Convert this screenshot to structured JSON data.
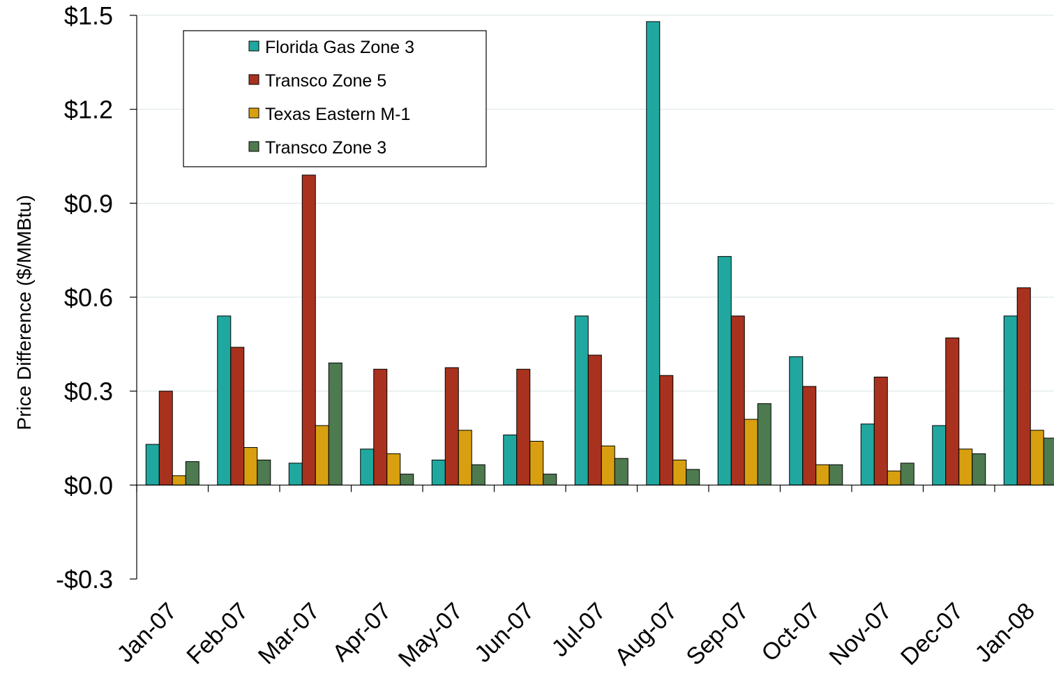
{
  "chart_data": {
    "type": "bar",
    "title": "",
    "xlabel": "",
    "ylabel": "Price Difference  ($/MMBtu)",
    "ylim": [
      -0.3,
      1.5
    ],
    "yticks": [
      -0.3,
      0.0,
      0.3,
      0.6,
      0.9,
      1.2,
      1.5
    ],
    "ytick_labels": [
      "-$0.3",
      "$0.0",
      "$0.3",
      "$0.6",
      "$0.9",
      "$1.2",
      "$1.5"
    ],
    "grid": true,
    "legend_position": "top-left",
    "categories": [
      "Jan-07",
      "Feb-07",
      "Mar-07",
      "Apr-07",
      "May-07",
      "Jun-07",
      "Jul-07",
      "Aug-07",
      "Sep-07",
      "Oct-07",
      "Nov-07",
      "Dec-07",
      "Jan-08"
    ],
    "series": [
      {
        "name": "Florida Gas Zone 3",
        "color": "#20A8A0",
        "values": [
          0.13,
          0.54,
          0.07,
          0.115,
          0.08,
          0.16,
          0.54,
          1.48,
          0.73,
          0.41,
          0.195,
          0.19,
          0.54
        ]
      },
      {
        "name": "Transco Zone 5",
        "color": "#A8321E",
        "values": [
          0.3,
          0.44,
          0.99,
          0.37,
          0.375,
          0.37,
          0.415,
          0.35,
          0.54,
          0.315,
          0.345,
          0.47,
          0.63
        ]
      },
      {
        "name": "Texas Eastern M-1",
        "color": "#D8A010",
        "values": [
          0.03,
          0.12,
          0.19,
          0.1,
          0.175,
          0.14,
          0.125,
          0.08,
          0.21,
          0.065,
          0.045,
          0.115,
          0.175
        ]
      },
      {
        "name": "Transco Zone 3",
        "color": "#4E7A50",
        "values": [
          0.075,
          0.08,
          0.39,
          0.035,
          0.065,
          0.035,
          0.085,
          0.05,
          0.26,
          0.065,
          0.07,
          0.1,
          0.15
        ]
      }
    ]
  }
}
